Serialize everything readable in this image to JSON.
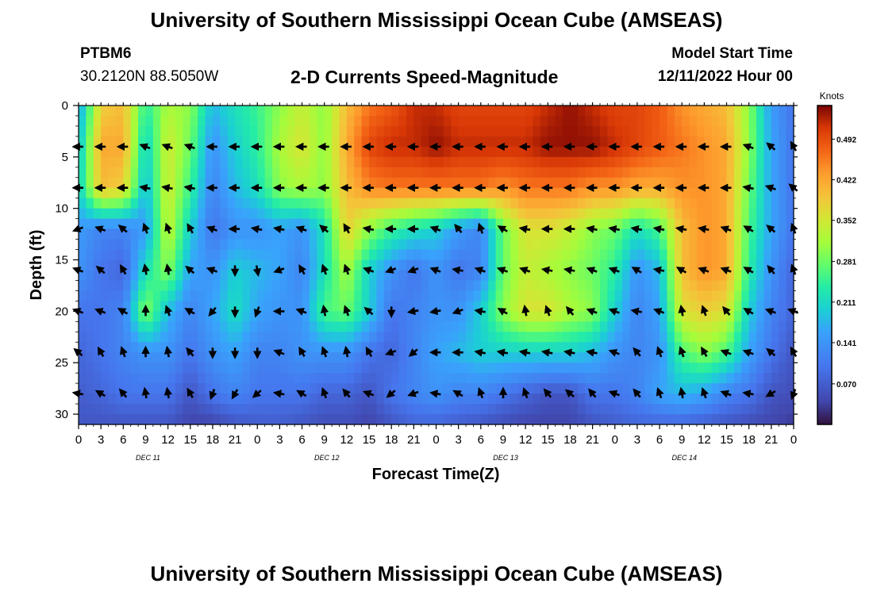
{
  "header": {
    "title": "University of Southern Mississippi Ocean Cube (AMSEAS)",
    "station_id": "PTBM6",
    "station_coords": "30.2120N  88.5050W",
    "chart_title": "2-D Currents Speed-Magnitude",
    "model_start_label": "Model Start Time",
    "model_start_value": "12/11/2022 Hour 00"
  },
  "footer": {
    "title": "University of Southern Mississippi Ocean Cube (AMSEAS)"
  },
  "chart_data": {
    "type": "heatmap",
    "title": "2-D Currents Speed-Magnitude",
    "xlabel": "Forecast Time(Z)",
    "ylabel": "Depth (ft)",
    "x_range_hours": [
      0,
      96
    ],
    "x_tick_labels": [
      "0",
      "3",
      "6",
      "9",
      "12",
      "15",
      "18",
      "21",
      "0",
      "3",
      "6",
      "9",
      "12",
      "15",
      "18",
      "21",
      "0",
      "3",
      "6",
      "9",
      "12",
      "15",
      "18",
      "21",
      "0",
      "3",
      "6",
      "9",
      "12",
      "15",
      "18",
      "21",
      "0"
    ],
    "day_labels": [
      "DEC 11",
      "DEC 12",
      "DEC 13",
      "DEC 14"
    ],
    "ylim": [
      0,
      31
    ],
    "y_ticks": [
      0,
      5,
      10,
      15,
      20,
      25,
      30
    ],
    "colorbar": {
      "unit": "Knots",
      "ticks": [
        0.492,
        0.422,
        0.352,
        0.281,
        0.211,
        0.141,
        0.07
      ],
      "tick_labels": [
        "0.492",
        "0.422",
        "0.352",
        "0.281",
        "0.211",
        "0.141",
        "0.070"
      ],
      "range": [
        0.0,
        0.55
      ]
    },
    "depths_ft": [
      0,
      4,
      8,
      12,
      16,
      20,
      24,
      28,
      31
    ],
    "hours": [
      0,
      3,
      6,
      9,
      12,
      15,
      18,
      21,
      24,
      27,
      30,
      33,
      36,
      39,
      42,
      45,
      48,
      51,
      54,
      57,
      60,
      63,
      66,
      69,
      72,
      75,
      78,
      81,
      84,
      87,
      90,
      93,
      96
    ],
    "speed": [
      [
        0.15,
        0.38,
        0.4,
        0.24,
        0.32,
        0.3,
        0.18,
        0.22,
        0.25,
        0.3,
        0.34,
        0.3,
        0.4,
        0.46,
        0.48,
        0.52,
        0.52,
        0.5,
        0.5,
        0.5,
        0.5,
        0.52,
        0.54,
        0.52,
        0.5,
        0.5,
        0.48,
        0.44,
        0.42,
        0.4,
        0.3,
        0.15,
        0.1
      ],
      [
        0.18,
        0.42,
        0.42,
        0.2,
        0.35,
        0.28,
        0.14,
        0.2,
        0.24,
        0.32,
        0.36,
        0.3,
        0.42,
        0.5,
        0.52,
        0.52,
        0.54,
        0.52,
        0.52,
        0.52,
        0.52,
        0.54,
        0.54,
        0.54,
        0.52,
        0.5,
        0.48,
        0.46,
        0.44,
        0.42,
        0.3,
        0.16,
        0.1
      ],
      [
        0.2,
        0.4,
        0.38,
        0.18,
        0.35,
        0.25,
        0.12,
        0.18,
        0.22,
        0.3,
        0.32,
        0.3,
        0.4,
        0.45,
        0.46,
        0.46,
        0.46,
        0.46,
        0.46,
        0.44,
        0.46,
        0.46,
        0.46,
        0.44,
        0.44,
        0.42,
        0.42,
        0.44,
        0.44,
        0.42,
        0.28,
        0.16,
        0.1
      ],
      [
        0.15,
        0.12,
        0.12,
        0.15,
        0.34,
        0.2,
        0.1,
        0.14,
        0.14,
        0.16,
        0.14,
        0.22,
        0.38,
        0.3,
        0.25,
        0.22,
        0.2,
        0.15,
        0.12,
        0.28,
        0.36,
        0.36,
        0.34,
        0.3,
        0.28,
        0.22,
        0.26,
        0.4,
        0.44,
        0.42,
        0.26,
        0.16,
        0.1
      ],
      [
        0.14,
        0.1,
        0.08,
        0.22,
        0.3,
        0.16,
        0.14,
        0.2,
        0.18,
        0.16,
        0.12,
        0.22,
        0.32,
        0.2,
        0.14,
        0.1,
        0.14,
        0.1,
        0.12,
        0.28,
        0.34,
        0.32,
        0.3,
        0.28,
        0.24,
        0.14,
        0.18,
        0.4,
        0.44,
        0.42,
        0.24,
        0.14,
        0.08
      ],
      [
        0.1,
        0.1,
        0.12,
        0.3,
        0.18,
        0.12,
        0.16,
        0.22,
        0.16,
        0.14,
        0.14,
        0.26,
        0.28,
        0.2,
        0.1,
        0.12,
        0.14,
        0.14,
        0.2,
        0.3,
        0.36,
        0.36,
        0.32,
        0.3,
        0.2,
        0.12,
        0.16,
        0.36,
        0.38,
        0.36,
        0.2,
        0.12,
        0.08
      ],
      [
        0.08,
        0.1,
        0.12,
        0.14,
        0.14,
        0.1,
        0.14,
        0.16,
        0.12,
        0.12,
        0.14,
        0.14,
        0.14,
        0.1,
        0.08,
        0.12,
        0.16,
        0.18,
        0.2,
        0.2,
        0.2,
        0.2,
        0.2,
        0.18,
        0.14,
        0.12,
        0.14,
        0.26,
        0.3,
        0.26,
        0.16,
        0.1,
        0.06
      ],
      [
        0.07,
        0.08,
        0.1,
        0.1,
        0.1,
        0.06,
        0.1,
        0.12,
        0.1,
        0.1,
        0.1,
        0.08,
        0.08,
        0.06,
        0.1,
        0.12,
        0.14,
        0.12,
        0.12,
        0.1,
        0.08,
        0.06,
        0.06,
        0.1,
        0.1,
        0.12,
        0.16,
        0.18,
        0.16,
        0.12,
        0.1,
        0.06,
        0.05
      ],
      [
        0.06,
        0.06,
        0.06,
        0.06,
        0.06,
        0.04,
        0.04,
        0.06,
        0.07,
        0.07,
        0.06,
        0.05,
        0.05,
        0.04,
        0.06,
        0.08,
        0.08,
        0.07,
        0.06,
        0.05,
        0.04,
        0.04,
        0.04,
        0.06,
        0.07,
        0.08,
        0.08,
        0.08,
        0.07,
        0.06,
        0.05,
        0.04,
        0.03
      ]
    ],
    "arrow_depths_ft": [
      4,
      8,
      12,
      16,
      20,
      24,
      28
    ],
    "arrow_angles_deg": [
      [
        180,
        180,
        180,
        200,
        200,
        200,
        180,
        180,
        180,
        180,
        180,
        180,
        180,
        180,
        180,
        180,
        180,
        180,
        180,
        180,
        180,
        180,
        180,
        180,
        180,
        180,
        180,
        180,
        180,
        180,
        200,
        220,
        240
      ],
      [
        180,
        180,
        180,
        190,
        190,
        190,
        180,
        180,
        180,
        180,
        180,
        180,
        180,
        180,
        180,
        180,
        180,
        180,
        180,
        180,
        180,
        180,
        180,
        180,
        180,
        180,
        180,
        180,
        180,
        180,
        190,
        200,
        220
      ],
      [
        160,
        200,
        220,
        250,
        250,
        240,
        200,
        180,
        190,
        190,
        200,
        220,
        240,
        190,
        180,
        180,
        200,
        230,
        250,
        210,
        190,
        180,
        180,
        190,
        190,
        190,
        190,
        190,
        190,
        200,
        210,
        220,
        250
      ],
      [
        200,
        220,
        240,
        260,
        260,
        220,
        200,
        90,
        80,
        160,
        240,
        250,
        250,
        200,
        160,
        160,
        200,
        190,
        200,
        200,
        200,
        190,
        190,
        200,
        200,
        210,
        190,
        210,
        200,
        200,
        210,
        230,
        250
      ],
      [
        200,
        200,
        210,
        270,
        250,
        210,
        130,
        90,
        110,
        180,
        200,
        260,
        250,
        220,
        90,
        170,
        170,
        160,
        190,
        210,
        260,
        250,
        230,
        200,
        200,
        190,
        200,
        260,
        250,
        230,
        210,
        200,
        200
      ],
      [
        220,
        240,
        250,
        270,
        260,
        230,
        90,
        90,
        90,
        200,
        240,
        250,
        260,
        240,
        160,
        140,
        180,
        180,
        190,
        190,
        190,
        190,
        190,
        190,
        200,
        230,
        250,
        250,
        240,
        200,
        200,
        220,
        240
      ],
      [
        190,
        210,
        230,
        260,
        260,
        240,
        110,
        120,
        140,
        190,
        210,
        250,
        230,
        200,
        140,
        160,
        190,
        210,
        250,
        270,
        250,
        230,
        220,
        230,
        200,
        230,
        250,
        260,
        250,
        200,
        190,
        150,
        110
      ]
    ]
  }
}
